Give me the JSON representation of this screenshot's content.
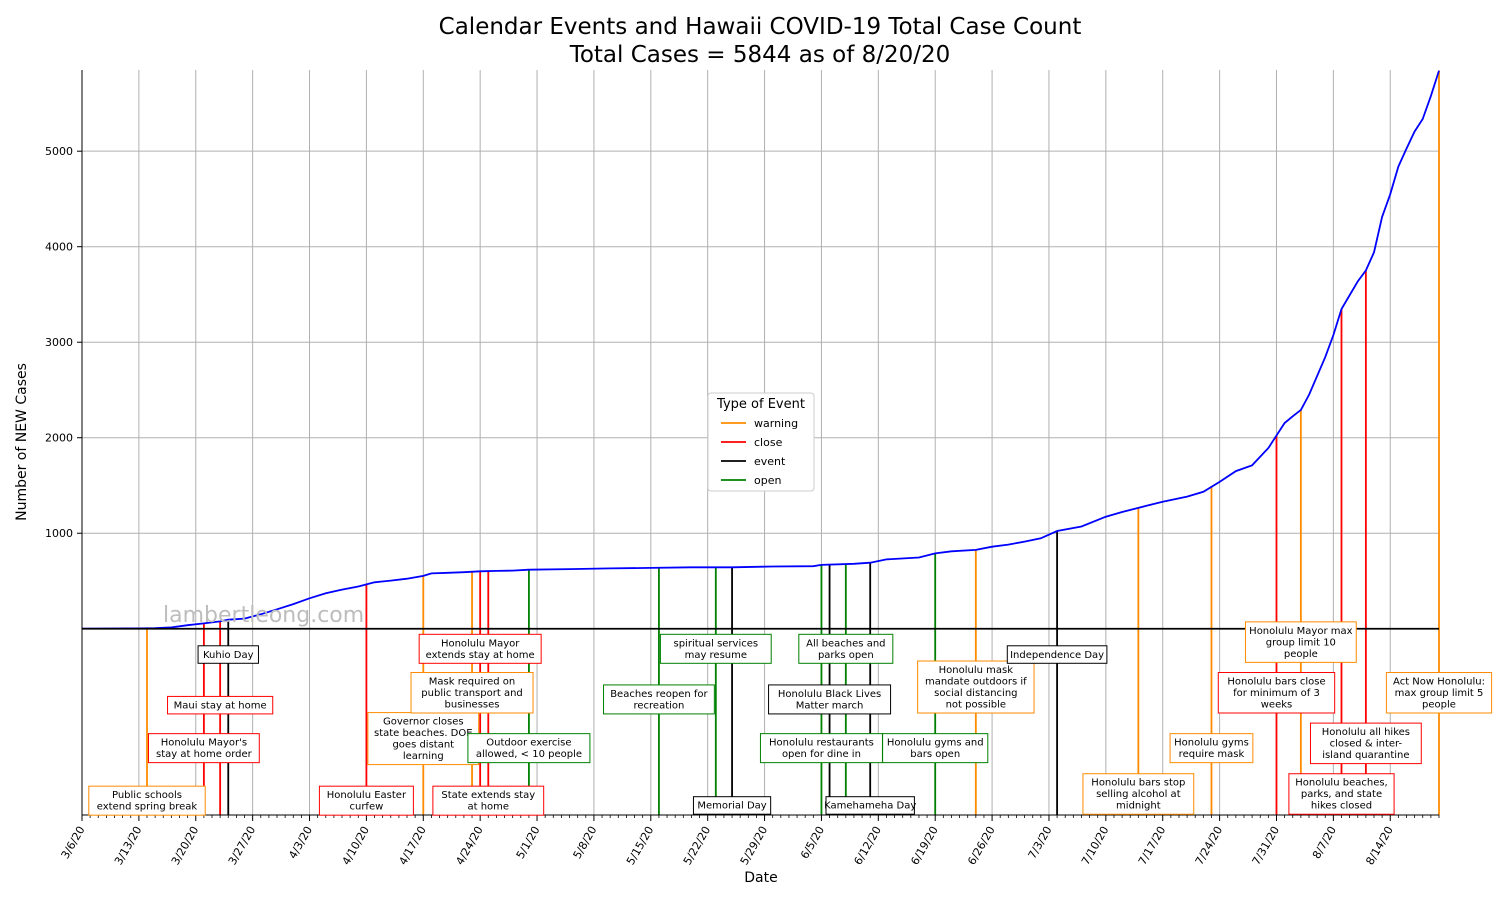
{
  "chart_data": {
    "type": "line",
    "title": "Calendar Events and Hawaii COVID-19 Total Case Count",
    "subtitle": "Total Cases = 5844 as of 8/20/20",
    "xlabel": "Date",
    "ylabel": "Number of NEW Cases",
    "watermark": "lambertleong.com",
    "x_start": "2020-03-06",
    "x_end": "2020-08-20",
    "ylim": [
      -1950,
      5850
    ],
    "yticks": [
      1000,
      2000,
      3000,
      4000,
      5000
    ],
    "xtick_labels": [
      "3/6/20",
      "3/13/20",
      "3/20/20",
      "3/27/20",
      "4/3/20",
      "4/10/20",
      "4/17/20",
      "4/24/20",
      "5/1/20",
      "5/8/20",
      "5/15/20",
      "5/22/20",
      "5/29/20",
      "6/5/20",
      "6/12/20",
      "6/19/20",
      "6/26/20",
      "7/3/20",
      "7/10/20",
      "7/17/20",
      "7/24/20",
      "7/31/20",
      "8/7/20",
      "8/14/20"
    ],
    "grid": true,
    "series": [
      {
        "color": "#0000ff",
        "points": [
          [
            "2020-03-06",
            2
          ],
          [
            "2020-03-13",
            4
          ],
          [
            "2020-03-15",
            7
          ],
          [
            "2020-03-17",
            14
          ],
          [
            "2020-03-19",
            37
          ],
          [
            "2020-03-21",
            56
          ],
          [
            "2020-03-23",
            77
          ],
          [
            "2020-03-24",
            95
          ],
          [
            "2020-03-26",
            106
          ],
          [
            "2020-03-28",
            151
          ],
          [
            "2020-03-30",
            204
          ],
          [
            "2020-04-01",
            258
          ],
          [
            "2020-04-03",
            319
          ],
          [
            "2020-04-05",
            371
          ],
          [
            "2020-04-07",
            410
          ],
          [
            "2020-04-09",
            442
          ],
          [
            "2020-04-11",
            486
          ],
          [
            "2020-04-13",
            504
          ],
          [
            "2020-04-15",
            524
          ],
          [
            "2020-04-17",
            553
          ],
          [
            "2020-04-18",
            580
          ],
          [
            "2020-04-20",
            586
          ],
          [
            "2020-04-22",
            592
          ],
          [
            "2020-04-24",
            601
          ],
          [
            "2020-04-26",
            606
          ],
          [
            "2020-04-28",
            609
          ],
          [
            "2020-04-30",
            618
          ],
          [
            "2020-05-05",
            625
          ],
          [
            "2020-05-10",
            632
          ],
          [
            "2020-05-15",
            637
          ],
          [
            "2020-05-20",
            643
          ],
          [
            "2020-05-25",
            643
          ],
          [
            "2020-05-30",
            652
          ],
          [
            "2020-06-04",
            655
          ],
          [
            "2020-06-05",
            669
          ],
          [
            "2020-06-09",
            680
          ],
          [
            "2020-06-11",
            692
          ],
          [
            "2020-06-13",
            726
          ],
          [
            "2020-06-17",
            746
          ],
          [
            "2020-06-19",
            789
          ],
          [
            "2020-06-21",
            811
          ],
          [
            "2020-06-24",
            826
          ],
          [
            "2020-06-26",
            859
          ],
          [
            "2020-06-28",
            881
          ],
          [
            "2020-06-30",
            912
          ],
          [
            "2020-07-02",
            947
          ],
          [
            "2020-07-04",
            1023
          ],
          [
            "2020-07-07",
            1071
          ],
          [
            "2020-07-10",
            1173
          ],
          [
            "2020-07-12",
            1222
          ],
          [
            "2020-07-15",
            1287
          ],
          [
            "2020-07-17",
            1330
          ],
          [
            "2020-07-20",
            1384
          ],
          [
            "2020-07-22",
            1434
          ],
          [
            "2020-07-24",
            1537
          ],
          [
            "2020-07-26",
            1651
          ],
          [
            "2020-07-28",
            1711
          ],
          [
            "2020-07-30",
            1892
          ],
          [
            "2020-08-01",
            2154
          ],
          [
            "2020-08-02",
            2224
          ],
          [
            "2020-08-03",
            2291
          ],
          [
            "2020-08-04",
            2448
          ],
          [
            "2020-08-06",
            2843
          ],
          [
            "2020-08-07",
            3076
          ],
          [
            "2020-08-08",
            3348
          ],
          [
            "2020-08-10",
            3636
          ],
          [
            "2020-08-11",
            3752
          ],
          [
            "2020-08-12",
            3941
          ],
          [
            "2020-08-13",
            4312
          ],
          [
            "2020-08-14",
            4549
          ],
          [
            "2020-08-15",
            4840
          ],
          [
            "2020-08-16",
            5027
          ],
          [
            "2020-08-17",
            5206
          ],
          [
            "2020-08-18",
            5337
          ],
          [
            "2020-08-19",
            5579
          ],
          [
            "2020-08-20",
            5844
          ]
        ]
      }
    ],
    "legend": {
      "title": "Type of Event",
      "placement": "center",
      "entries": [
        {
          "label": "warning",
          "color": "#ff8c00"
        },
        {
          "label": "close",
          "color": "#ff0000"
        },
        {
          "label": "event",
          "color": "#000000"
        },
        {
          "label": "open",
          "color": "#008000"
        }
      ]
    },
    "events": [
      {
        "date": "2020-03-14",
        "type": "warning",
        "lines": [
          "Public schools",
          "extend spring break"
        ],
        "label_y": -1800
      },
      {
        "date": "2020-03-21",
        "type": "close",
        "lines": [
          "Honolulu Mayor's",
          "stay at home order"
        ],
        "label_y": -1250
      },
      {
        "date": "2020-03-23",
        "type": "close",
        "lines": [
          "Maui stay at home"
        ],
        "label_y": -800
      },
      {
        "date": "2020-03-24",
        "type": "event",
        "lines": [
          "Kuhio Day"
        ],
        "label_y": -270
      },
      {
        "date": "2020-04-10",
        "type": "close",
        "lines": [
          "Honolulu Easter",
          "curfew"
        ],
        "label_y": -1800
      },
      {
        "date": "2020-04-17",
        "type": "warning",
        "lines": [
          "Governor closes",
          "state beaches. DOE",
          "goes distant",
          "learning"
        ],
        "label_y": -1150
      },
      {
        "date": "2020-04-23",
        "type": "warning",
        "lines": [
          "Mask required on",
          "public transport and",
          "businesses"
        ],
        "label_y": -670
      },
      {
        "date": "2020-04-24",
        "type": "close",
        "lines": [
          "Honolulu Mayor",
          "extends stay at home"
        ],
        "label_y": -210
      },
      {
        "date": "2020-04-25",
        "type": "close",
        "lines": [
          "State extends stay",
          "at home"
        ],
        "label_y": -1800
      },
      {
        "date": "2020-04-30",
        "type": "open",
        "lines": [
          "Outdoor exercise",
          "allowed, < 10 people"
        ],
        "label_y": -1250
      },
      {
        "date": "2020-05-16",
        "type": "open",
        "lines": [
          "Beaches reopen for",
          "recreation"
        ],
        "label_y": -740
      },
      {
        "date": "2020-05-23",
        "type": "open",
        "lines": [
          "spiritual services",
          "may resume"
        ],
        "label_y": -210
      },
      {
        "date": "2020-05-25",
        "type": "event",
        "lines": [
          "Memorial Day"
        ],
        "label_y": -1850
      },
      {
        "date": "2020-06-05",
        "type": "open",
        "lines": [
          "Honolulu restaurants",
          "open for dine in"
        ],
        "label_y": -1250
      },
      {
        "date": "2020-06-06",
        "type": "event",
        "lines": [
          "Honolulu Black Lives",
          "Matter march"
        ],
        "label_y": -740
      },
      {
        "date": "2020-06-08",
        "type": "open",
        "lines": [
          "All beaches and",
          "parks open"
        ],
        "label_y": -210
      },
      {
        "date": "2020-06-11",
        "type": "event",
        "lines": [
          "Kamehameha Day"
        ],
        "label_y": -1850
      },
      {
        "date": "2020-06-19",
        "type": "open",
        "lines": [
          "Honolulu gyms and",
          "bars open"
        ],
        "label_y": -1250
      },
      {
        "date": "2020-06-24",
        "type": "warning",
        "lines": [
          "Honolulu mask",
          "mandate outdoors if",
          "social distancing",
          "not possible"
        ],
        "label_y": -610
      },
      {
        "date": "2020-07-04",
        "type": "event",
        "lines": [
          "Independence Day"
        ],
        "label_y": -270
      },
      {
        "date": "2020-07-14",
        "type": "warning",
        "lines": [
          "Honolulu bars stop",
          "selling alcohol at",
          "midnight"
        ],
        "label_y": -1730
      },
      {
        "date": "2020-07-23",
        "type": "warning",
        "lines": [
          "Honolulu gyms",
          "require mask"
        ],
        "label_y": -1250
      },
      {
        "date": "2020-07-31",
        "type": "close",
        "lines": [
          "Honolulu bars close",
          "for minimum of 3",
          "weeks"
        ],
        "label_y": -670
      },
      {
        "date": "2020-08-03",
        "type": "warning",
        "lines": [
          "Honolulu Mayor max",
          "group limit 10",
          "people"
        ],
        "label_y": -140
      },
      {
        "date": "2020-08-08",
        "type": "close",
        "lines": [
          "Honolulu beaches,",
          "parks, and state",
          "hikes closed"
        ],
        "label_y": -1730
      },
      {
        "date": "2020-08-11",
        "type": "close",
        "lines": [
          "Honolulu all hikes",
          "closed & inter-",
          "island quarantine"
        ],
        "label_y": -1200
      },
      {
        "date": "2020-08-20",
        "type": "warning",
        "lines": [
          "Act Now Honolulu:",
          "max group limit 5",
          "people"
        ],
        "label_y": -670
      }
    ]
  }
}
